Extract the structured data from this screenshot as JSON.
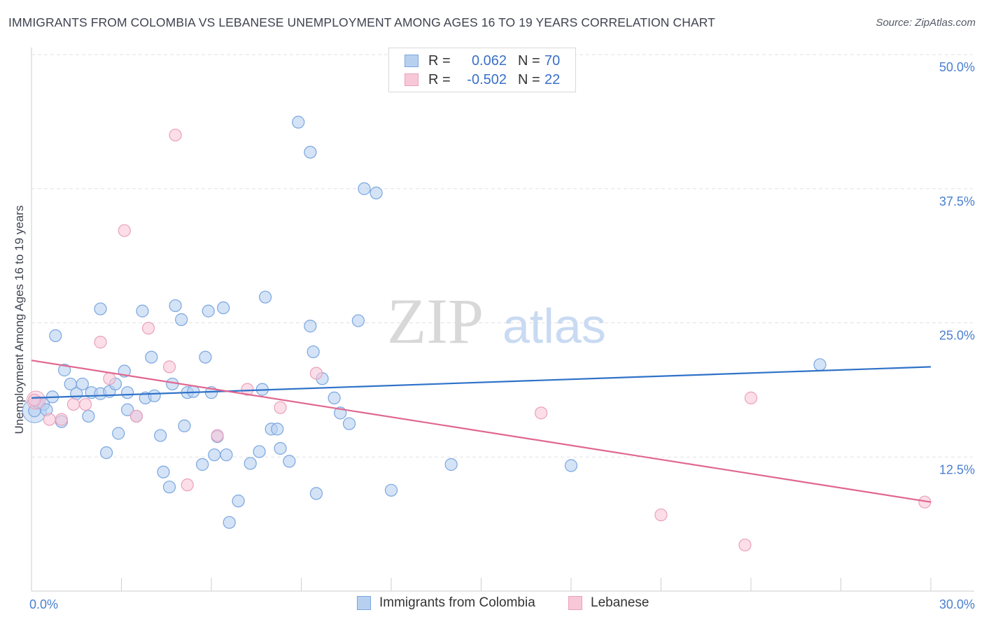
{
  "header": {
    "title": "IMMIGRANTS FROM COLOMBIA VS LEBANESE UNEMPLOYMENT AMONG AGES 16 TO 19 YEARS CORRELATION CHART",
    "source": "Source: ZipAtlas.com"
  },
  "watermark": {
    "zip": "ZIP",
    "atlas": "atlas"
  },
  "legend": {
    "rows": [
      {
        "r_label": "R =",
        "r_value": "0.062",
        "n_label": "N =",
        "n_value": "70"
      },
      {
        "r_label": "R =",
        "r_value": "-0.502",
        "n_label": "N =",
        "n_value": "22"
      }
    ]
  },
  "bottom_legend": {
    "colombia": "Immigrants from Colombia",
    "lebanese": "Lebanese"
  },
  "colors": {
    "colombia_fill": "#b8d0f0",
    "colombia_stroke": "#7aa6e0",
    "colombia_line": "#2f72c8",
    "lebanese_fill": "#f8c8d8",
    "lebanese_stroke": "#eaa0bc",
    "lebanese_line": "#e0678f",
    "tick_text": "#4a7fd0",
    "grid": "#e2e2e2"
  },
  "chart_data": {
    "type": "scatter",
    "title": "IMMIGRANTS FROM COLOMBIA VS LEBANESE UNEMPLOYMENT AMONG AGES 16 TO 19 YEARS CORRELATION CHART",
    "xlabel": "",
    "ylabel": "Unemployment Among Ages 16 to 19 years",
    "xlim": [
      0,
      30
    ],
    "ylim": [
      0,
      50
    ],
    "x_tick_labels": [
      "0.0%",
      "30.0%"
    ],
    "y_ticks": [
      12.5,
      25.0,
      37.5,
      50.0
    ],
    "y_tick_labels": [
      "12.5%",
      "25.0%",
      "37.5%",
      "50.0%"
    ],
    "grid": true,
    "series": [
      {
        "name": "Immigrants from Colombia",
        "r": 0.062,
        "n": 70,
        "trendline": {
          "x": [
            0,
            30
          ],
          "y": [
            18.0,
            20.9
          ]
        },
        "points": [
          [
            0.1,
            16.8
          ],
          [
            0.2,
            17.6
          ],
          [
            0.4,
            17.4
          ],
          [
            0.5,
            16.9
          ],
          [
            0.7,
            18.1
          ],
          [
            0.8,
            23.8
          ],
          [
            1.0,
            15.8
          ],
          [
            1.1,
            20.6
          ],
          [
            1.3,
            19.3
          ],
          [
            1.5,
            18.4
          ],
          [
            1.7,
            19.3
          ],
          [
            1.9,
            16.3
          ],
          [
            2.0,
            18.5
          ],
          [
            2.3,
            18.4
          ],
          [
            2.3,
            26.3
          ],
          [
            2.5,
            12.9
          ],
          [
            2.6,
            18.6
          ],
          [
            2.8,
            19.3
          ],
          [
            2.9,
            14.7
          ],
          [
            3.1,
            20.5
          ],
          [
            3.2,
            16.9
          ],
          [
            3.2,
            18.5
          ],
          [
            3.5,
            16.3
          ],
          [
            3.7,
            26.1
          ],
          [
            3.8,
            18.0
          ],
          [
            4.0,
            21.8
          ],
          [
            4.1,
            18.2
          ],
          [
            4.3,
            14.5
          ],
          [
            4.4,
            11.1
          ],
          [
            4.6,
            9.7
          ],
          [
            4.7,
            19.3
          ],
          [
            4.8,
            26.6
          ],
          [
            5.0,
            25.3
          ],
          [
            5.1,
            15.4
          ],
          [
            5.2,
            18.5
          ],
          [
            5.4,
            18.6
          ],
          [
            5.7,
            11.8
          ],
          [
            5.8,
            21.8
          ],
          [
            5.9,
            26.1
          ],
          [
            6.0,
            18.5
          ],
          [
            6.1,
            12.7
          ],
          [
            6.2,
            14.4
          ],
          [
            6.4,
            26.4
          ],
          [
            6.5,
            12.7
          ],
          [
            6.6,
            6.4
          ],
          [
            6.9,
            8.4
          ],
          [
            7.3,
            11.9
          ],
          [
            7.6,
            13.0
          ],
          [
            7.7,
            18.8
          ],
          [
            7.8,
            27.4
          ],
          [
            8.0,
            15.1
          ],
          [
            8.2,
            15.1
          ],
          [
            8.3,
            13.3
          ],
          [
            8.6,
            12.1
          ],
          [
            8.9,
            43.7
          ],
          [
            9.3,
            24.7
          ],
          [
            9.3,
            40.9
          ],
          [
            9.4,
            22.3
          ],
          [
            9.5,
            9.1
          ],
          [
            9.7,
            19.8
          ],
          [
            10.1,
            18.0
          ],
          [
            10.3,
            16.6
          ],
          [
            10.6,
            15.6
          ],
          [
            10.9,
            25.2
          ],
          [
            11.1,
            37.5
          ],
          [
            11.5,
            37.1
          ],
          [
            12.0,
            9.4
          ],
          [
            14.0,
            11.8
          ],
          [
            18.0,
            11.7
          ],
          [
            26.3,
            21.1
          ]
        ]
      },
      {
        "name": "Lebanese",
        "r": -0.502,
        "n": 22,
        "trendline": {
          "x": [
            0,
            30
          ],
          "y": [
            21.5,
            8.3
          ]
        },
        "points": [
          [
            0.1,
            17.8
          ],
          [
            0.6,
            16.0
          ],
          [
            1.0,
            16.0
          ],
          [
            1.4,
            17.4
          ],
          [
            1.8,
            17.4
          ],
          [
            2.3,
            23.2
          ],
          [
            2.6,
            19.8
          ],
          [
            3.1,
            33.6
          ],
          [
            3.5,
            16.3
          ],
          [
            3.9,
            24.5
          ],
          [
            4.6,
            20.9
          ],
          [
            4.8,
            42.5
          ],
          [
            5.2,
            9.9
          ],
          [
            6.2,
            14.5
          ],
          [
            7.2,
            18.8
          ],
          [
            8.3,
            17.1
          ],
          [
            9.5,
            20.3
          ],
          [
            17.0,
            16.6
          ],
          [
            21.0,
            7.1
          ],
          [
            23.8,
            4.3
          ],
          [
            24.0,
            18.0
          ],
          [
            29.8,
            8.3
          ]
        ]
      }
    ]
  }
}
